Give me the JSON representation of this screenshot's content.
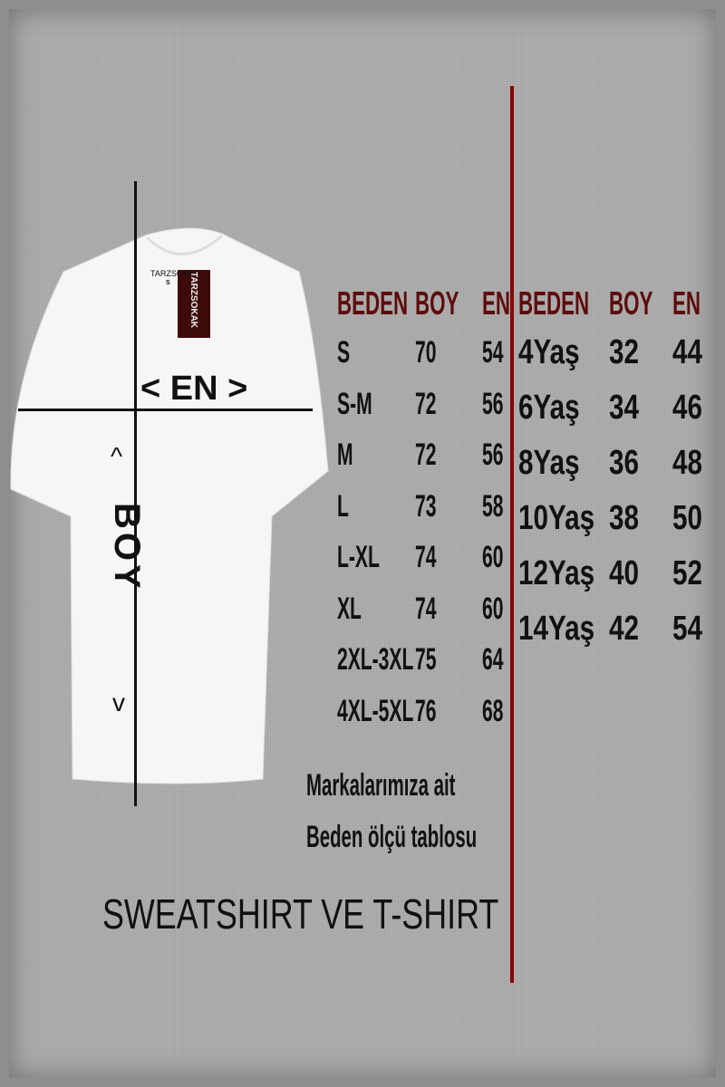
{
  "brand": {
    "neck_label": "TARZSOKAK",
    "neck_size": "S",
    "hang_tag": "TARZSOKAK"
  },
  "markers": {
    "width": "< EN >",
    "length_arrow_up": "^",
    "length": "BOY",
    "length_arrow_down": "v"
  },
  "adult_table": {
    "headers": [
      "BEDEN",
      "BOY",
      "EN"
    ],
    "rows": [
      [
        "S",
        "70",
        "54"
      ],
      [
        "S-M",
        "72",
        "56"
      ],
      [
        "M",
        "72",
        "56"
      ],
      [
        "L",
        "73",
        "58"
      ],
      [
        "L-XL",
        "74",
        "60"
      ],
      [
        "XL",
        "74",
        "60"
      ],
      [
        "2XL-3XL",
        "75",
        "64"
      ],
      [
        "4XL-5XL",
        "76",
        "68"
      ]
    ]
  },
  "kids_table": {
    "headers": [
      "BEDEN",
      "BOY",
      "EN"
    ],
    "rows": [
      [
        "4Yaş",
        "32",
        "44"
      ],
      [
        "6Yaş",
        "34",
        "46"
      ],
      [
        "8Yaş",
        "36",
        "48"
      ],
      [
        "10Yaş",
        "38",
        "50"
      ],
      [
        "12Yaş",
        "40",
        "52"
      ],
      [
        "14Yaş",
        "42",
        "54"
      ]
    ]
  },
  "note": {
    "line1": "Markalarımıza ait",
    "line2": "Beden ölçü tablosu"
  },
  "footer": "SWEATSHIRT VE T-SHIRT",
  "colors": {
    "header": "#5e0b0b",
    "divider": "#8b0000",
    "background": "#ababab"
  }
}
